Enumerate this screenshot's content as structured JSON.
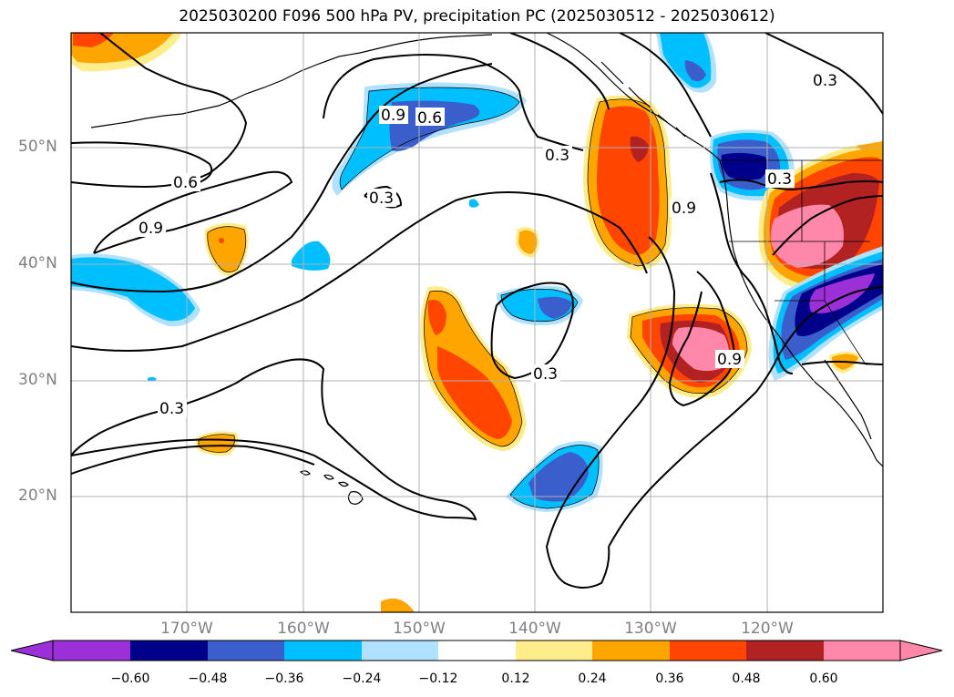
{
  "title": "2025030200 F096 500 hPa PV, precipitation PC (2025030512 - 2025030612)",
  "map": {
    "lat_labels": [
      "50°N",
      "40°N",
      "30°N",
      "20°N"
    ],
    "lon_labels": [
      "170°W",
      "160°W",
      "150°W",
      "140°W",
      "130°W",
      "120°W"
    ],
    "contour_labels": [
      "0.9",
      "0.6",
      "0.3",
      "0.6",
      "0.9",
      "0.3",
      "0.9",
      "0.3",
      "0.3",
      "0.9",
      "0.3",
      "0.3"
    ]
  },
  "colorbar": {
    "ticks": [
      "−0.60",
      "−0.48",
      "−0.36",
      "−0.24",
      "−0.12",
      "0.12",
      "0.24",
      "0.36",
      "0.48",
      "0.60"
    ],
    "colors": [
      "#9b30d9",
      "#00008b",
      "#3a5fcd",
      "#00bfff",
      "#b0e2ff",
      "#ffffff",
      "#ffec8b",
      "#ffa500",
      "#ff4500",
      "#b22222",
      "#ff88aa"
    ]
  }
}
